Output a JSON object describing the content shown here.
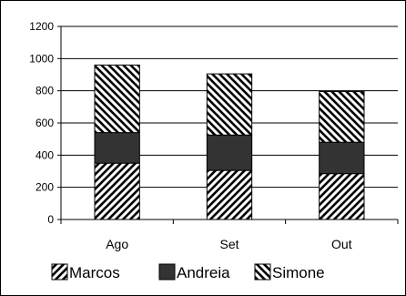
{
  "chart_data": {
    "type": "bar",
    "stacked": true,
    "categories": [
      "Ago",
      "Set",
      "Out"
    ],
    "series": [
      {
        "name": "Marcos",
        "values": [
          350,
          305,
          285
        ],
        "pattern": "hatch-forward",
        "color": "#000000"
      },
      {
        "name": "Andreia",
        "values": [
          190,
          220,
          195
        ],
        "pattern": "solid",
        "color": "#333333"
      },
      {
        "name": "Simone",
        "values": [
          420,
          380,
          315
        ],
        "pattern": "hatch-back",
        "color": "#000000"
      }
    ],
    "ylim": [
      0,
      1200
    ],
    "yticks": [
      0,
      200,
      400,
      600,
      800,
      1000,
      1200
    ],
    "grid": true,
    "legend_position": "bottom"
  }
}
